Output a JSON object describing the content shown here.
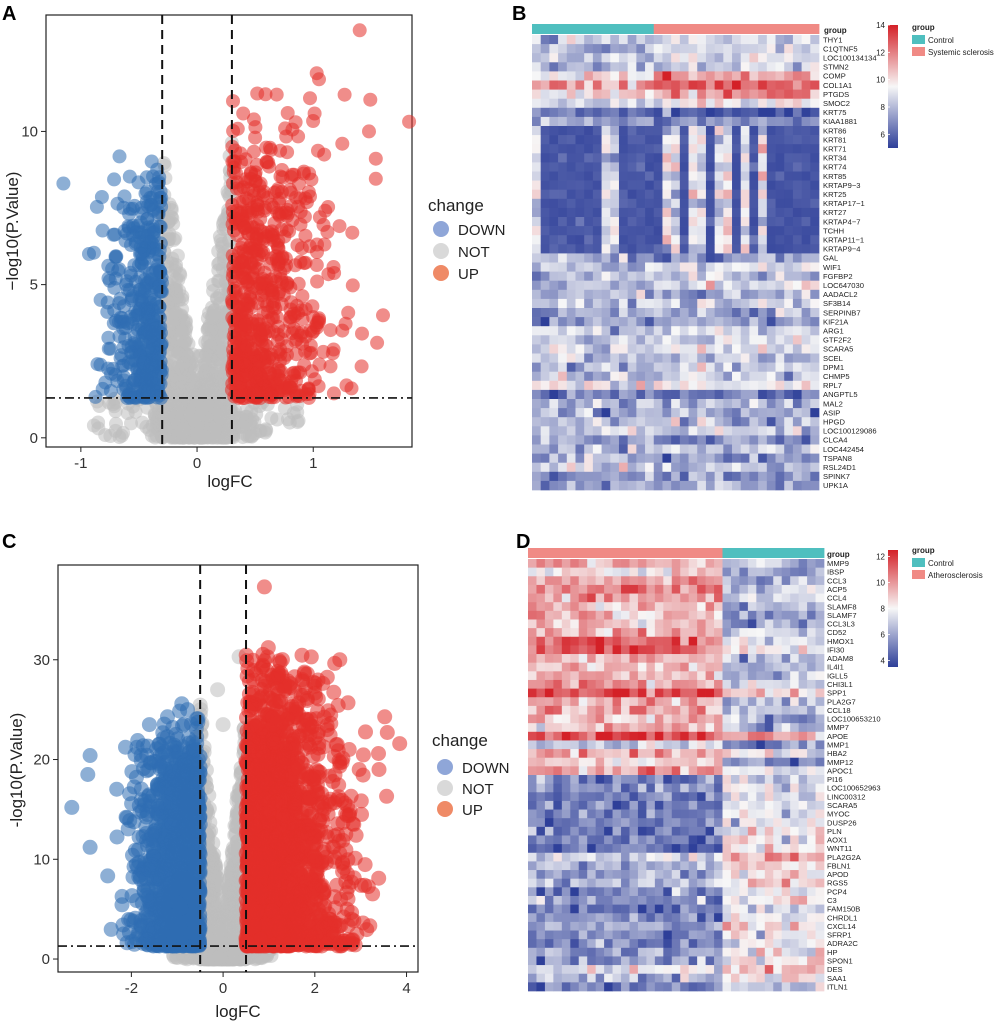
{
  "colors": {
    "down": "#2f6db3",
    "not": "#bdbdbd",
    "up": "#e3302a",
    "down_legend": "#8fa6d8",
    "not_legend": "#d9d9d9",
    "up_legend": "#ef8a66",
    "control": "#4fbfbf",
    "disease": "#f08a85",
    "heat_low": "#2e3f99",
    "heat_mid": "#f7f7f7",
    "heat_high": "#d42027"
  },
  "chart_data": [
    {
      "panel": "A",
      "type": "scatter",
      "kind": "volcano",
      "xlabel": "logFC",
      "ylabel": "−log10(P.Value)",
      "xlim": [
        -1.3,
        1.85
      ],
      "ylim": [
        -0.3,
        13.8
      ],
      "xticks": [
        -1,
        0,
        1
      ],
      "yticks": [
        0,
        5,
        10
      ],
      "fc_threshold": 0.3,
      "p_threshold": 1.3,
      "seed": 7,
      "series": [
        {
          "name": "DOWN",
          "count": 420
        },
        {
          "name": "NOT",
          "count": 1500
        },
        {
          "name": "UP",
          "count": 650
        }
      ],
      "outliers": [
        {
          "x": -1.15,
          "y": 8.3,
          "change": "DOWN"
        },
        {
          "x": -0.93,
          "y": 6.0,
          "change": "DOWN"
        },
        {
          "x": -0.83,
          "y": 4.5,
          "change": "DOWN"
        },
        {
          "x": -0.7,
          "y": 5.2,
          "change": "DOWN"
        },
        {
          "x": -0.65,
          "y": 2.7,
          "change": "DOWN"
        },
        {
          "x": -0.55,
          "y": 1.8,
          "change": "DOWN"
        },
        {
          "x": -0.4,
          "y": 7.6,
          "change": "DOWN"
        },
        {
          "x": -0.38,
          "y": 6.9,
          "change": "DOWN"
        },
        {
          "x": 0.28,
          "y": 9.2,
          "change": "NOT"
        },
        {
          "x": 1.4,
          "y": 13.3,
          "change": "UP"
        },
        {
          "x": 1.03,
          "y": 11.9,
          "change": "UP"
        },
        {
          "x": 1.27,
          "y": 11.2,
          "change": "UP"
        },
        {
          "x": 1.05,
          "y": 11.7,
          "change": "UP"
        },
        {
          "x": 1.48,
          "y": 10.0,
          "change": "UP"
        },
        {
          "x": 1.25,
          "y": 9.6,
          "change": "UP"
        },
        {
          "x": 0.78,
          "y": 10.6,
          "change": "UP"
        },
        {
          "x": 1.6,
          "y": 4.0,
          "change": "UP"
        },
        {
          "x": 1.55,
          "y": 3.1,
          "change": "UP"
        },
        {
          "x": 1.42,
          "y": 3.4,
          "change": "UP"
        },
        {
          "x": 1.25,
          "y": 3.5,
          "change": "UP"
        },
        {
          "x": 1.05,
          "y": 3.9,
          "change": "UP"
        }
      ],
      "legend_title": "change",
      "legend": [
        "DOWN",
        "NOT",
        "UP"
      ]
    },
    {
      "panel": "B",
      "type": "heatmap",
      "groups": [
        {
          "name": "Control",
          "n": 14
        },
        {
          "name": "Systemic sclerosis",
          "n": 19
        }
      ],
      "annotation_label": "group",
      "legend_title": "group",
      "scale": {
        "min": 5,
        "max": 14,
        "ticks": [
          6,
          8,
          10,
          12,
          14
        ]
      },
      "seed": 101,
      "rows": [
        {
          "gene": "THY1",
          "base": 8.6,
          "up": 0.4
        },
        {
          "gene": "C1QTNF5",
          "base": 8.6,
          "up": 0.4
        },
        {
          "gene": "LOC100134134",
          "base": 8.9,
          "up": 0.3
        },
        {
          "gene": "STMN2",
          "base": 8.4,
          "up": 0.3
        },
        {
          "gene": "COMP",
          "base": 10.8,
          "up": 0.9
        },
        {
          "gene": "COL1A1",
          "base": 12.0,
          "up": 0.7
        },
        {
          "gene": "PTGDS",
          "base": 10.8,
          "up": 0.6
        },
        {
          "gene": "SMOC2",
          "base": 9.0,
          "up": 0.3
        },
        {
          "gene": "KRT75",
          "base": 6.0,
          "up": -0.3
        },
        {
          "gene": "KIAA1881",
          "base": 7.2,
          "up": -0.3
        },
        {
          "gene": "KRT86",
          "base": 5.6,
          "up": -0.2,
          "stripe": 1
        },
        {
          "gene": "KRT81",
          "base": 5.6,
          "up": -0.2,
          "stripe": 1
        },
        {
          "gene": "KRT71",
          "base": 5.6,
          "up": -0.2,
          "stripe": 1
        },
        {
          "gene": "KRT34",
          "base": 5.6,
          "up": -0.2,
          "stripe": 1
        },
        {
          "gene": "KRT74",
          "base": 5.6,
          "up": -0.2,
          "stripe": 1
        },
        {
          "gene": "KRT85",
          "base": 5.6,
          "up": -0.2,
          "stripe": 1
        },
        {
          "gene": "KRTAP9−3",
          "base": 5.6,
          "up": -0.2,
          "stripe": 1
        },
        {
          "gene": "KRT25",
          "base": 5.6,
          "up": -0.2,
          "stripe": 1
        },
        {
          "gene": "KRTAP17−1",
          "base": 5.6,
          "up": -0.2,
          "stripe": 1
        },
        {
          "gene": "KRT27",
          "base": 5.6,
          "up": -0.2,
          "stripe": 1
        },
        {
          "gene": "KRTAP4−7",
          "base": 5.6,
          "up": -0.2,
          "stripe": 1
        },
        {
          "gene": "TCHH",
          "base": 5.6,
          "up": -0.2,
          "stripe": 1
        },
        {
          "gene": "KRTAP11−1",
          "base": 5.6,
          "up": -0.2,
          "stripe": 1
        },
        {
          "gene": "KRTAP9−4",
          "base": 5.6,
          "up": -0.2,
          "stripe": 1
        },
        {
          "gene": "GAL",
          "base": 7.4,
          "up": -0.3
        },
        {
          "gene": "WIF1",
          "base": 8.6,
          "up": 0.3
        },
        {
          "gene": "FGFBP2",
          "base": 8.0,
          "up": 0.2
        },
        {
          "gene": "LOC647030",
          "base": 8.5,
          "up": 0.2
        },
        {
          "gene": "AADACL2",
          "base": 7.8,
          "up": -0.2
        },
        {
          "gene": "SF3B14",
          "base": 8.6,
          "up": 0.2
        },
        {
          "gene": "SERPINB7",
          "base": 7.6,
          "up": 0.0
        },
        {
          "gene": "KIF21A",
          "base": 7.3,
          "up": 0.0
        },
        {
          "gene": "ARG1",
          "base": 8.6,
          "up": 0.2
        },
        {
          "gene": "GTF2F2",
          "base": 8.5,
          "up": 0.2
        },
        {
          "gene": "SCARA5",
          "base": 8.8,
          "up": 0.3
        },
        {
          "gene": "SCEL",
          "base": 8.0,
          "up": -0.2
        },
        {
          "gene": "DPM1",
          "base": 8.4,
          "up": 0.1
        },
        {
          "gene": "CHMP5",
          "base": 8.4,
          "up": 0.1
        },
        {
          "gene": "RPL7",
          "base": 9.6,
          "up": 0.2
        },
        {
          "gene": "ANGPTL5",
          "base": 6.2,
          "up": 0.0
        },
        {
          "gene": "MAL2",
          "base": 7.6,
          "up": 0.0
        },
        {
          "gene": "ASIP",
          "base": 7.8,
          "up": 0.0
        },
        {
          "gene": "HPGD",
          "base": 8.2,
          "up": -0.2
        },
        {
          "gene": "LOC100129086",
          "base": 8.5,
          "up": 0.2
        },
        {
          "gene": "CLCA4",
          "base": 7.2,
          "up": -0.2
        },
        {
          "gene": "LOC442454",
          "base": 8.2,
          "up": 0.2
        },
        {
          "gene": "TSPAN8",
          "base": 7.4,
          "up": -0.2
        },
        {
          "gene": "RSL24D1",
          "base": 8.4,
          "up": 0.1
        },
        {
          "gene": "SPINK7",
          "base": 7.2,
          "up": -0.2
        },
        {
          "gene": "UPK1A",
          "base": 7.4,
          "up": -0.2
        }
      ]
    },
    {
      "panel": "C",
      "type": "scatter",
      "kind": "volcano",
      "xlabel": "logFC",
      "ylabel": "-log10(P.Value)",
      "xlim": [
        -3.6,
        4.25
      ],
      "ylim": [
        -1.3,
        39.5
      ],
      "xticks": [
        -2,
        0,
        2,
        4
      ],
      "yticks": [
        0,
        10,
        20,
        30
      ],
      "fc_threshold": 0.5,
      "p_threshold": 1.3,
      "seed": 19,
      "series": [
        {
          "name": "DOWN",
          "count": 1300
        },
        {
          "name": "NOT",
          "count": 1400
        },
        {
          "name": "UP",
          "count": 2000
        }
      ],
      "outliers": [
        {
          "x": -3.3,
          "y": 15.2,
          "change": "DOWN"
        },
        {
          "x": -2.9,
          "y": 20.4,
          "change": "DOWN"
        },
        {
          "x": -2.95,
          "y": 18.5,
          "change": "DOWN"
        },
        {
          "x": -2.9,
          "y": 11.2,
          "change": "DOWN"
        },
        {
          "x": -1.8,
          "y": 8.0,
          "change": "DOWN"
        },
        {
          "x": -1.5,
          "y": 12.8,
          "change": "DOWN"
        },
        {
          "x": -0.9,
          "y": 25.6,
          "change": "DOWN"
        },
        {
          "x": -0.12,
          "y": 27.0,
          "change": "NOT"
        },
        {
          "x": 0.0,
          "y": 23.5,
          "change": "NOT"
        },
        {
          "x": 0.35,
          "y": 30.3,
          "change": "NOT"
        },
        {
          "x": 0.9,
          "y": 37.3,
          "change": "UP"
        },
        {
          "x": 3.85,
          "y": 21.6,
          "change": "UP"
        },
        {
          "x": 3.4,
          "y": 19.0,
          "change": "UP"
        },
        {
          "x": 2.75,
          "y": 21.0,
          "change": "UP"
        },
        {
          "x": 2.85,
          "y": 13.5,
          "change": "UP"
        },
        {
          "x": 2.9,
          "y": 12.4,
          "change": "UP"
        },
        {
          "x": 2.5,
          "y": 16.0,
          "change": "UP"
        },
        {
          "x": 2.2,
          "y": 11.0,
          "change": "UP"
        }
      ],
      "legend_title": "change",
      "legend": [
        "DOWN",
        "NOT",
        "UP"
      ]
    },
    {
      "panel": "D",
      "type": "heatmap",
      "groups": [
        {
          "name": "Atherosclerosis",
          "n": 23
        },
        {
          "name": "Control",
          "n": 12
        }
      ],
      "legend_groups": [
        "Control",
        "Atherosclerosis"
      ],
      "annotation_label": "group",
      "legend_title": "group",
      "scale": {
        "min": 3.5,
        "max": 12.5,
        "ticks": [
          4,
          6,
          8,
          10,
          12
        ]
      },
      "seed": 303,
      "rows": [
        {
          "gene": "MMP9",
          "base": 8.0,
          "up": 1.6
        },
        {
          "gene": "IBSP",
          "base": 7.0,
          "up": 1.4
        },
        {
          "gene": "CCL3",
          "base": 8.0,
          "up": 1.6
        },
        {
          "gene": "ACP5",
          "base": 8.8,
          "up": 1.8
        },
        {
          "gene": "CCL4",
          "base": 8.2,
          "up": 1.6
        },
        {
          "gene": "SLAMF8",
          "base": 7.8,
          "up": 1.6
        },
        {
          "gene": "SLAMF7",
          "base": 7.6,
          "up": 1.6
        },
        {
          "gene": "CCL3L3",
          "base": 7.6,
          "up": 1.6
        },
        {
          "gene": "CD52",
          "base": 8.0,
          "up": 1.4
        },
        {
          "gene": "HMOX1",
          "base": 9.2,
          "up": 1.6
        },
        {
          "gene": "IFI30",
          "base": 9.4,
          "up": 1.6
        },
        {
          "gene": "ADAM8",
          "base": 8.0,
          "up": 1.5
        },
        {
          "gene": "IL4I1",
          "base": 7.8,
          "up": 1.5
        },
        {
          "gene": "IGLL5",
          "base": 7.8,
          "up": 1.2
        },
        {
          "gene": "CHI3L1",
          "base": 8.4,
          "up": 1.4
        },
        {
          "gene": "SPP1",
          "base": 10.2,
          "up": 1.5
        },
        {
          "gene": "PLA2G7",
          "base": 8.0,
          "up": 1.6
        },
        {
          "gene": "CCL18",
          "base": 8.0,
          "up": 1.6
        },
        {
          "gene": "LOC100653210",
          "base": 7.8,
          "up": 1.6
        },
        {
          "gene": "MMP7",
          "base": 7.6,
          "up": 1.4
        },
        {
          "gene": "APOE",
          "base": 10.6,
          "up": 0.8
        },
        {
          "gene": "MMP1",
          "base": 6.0,
          "up": 1.0
        },
        {
          "gene": "HBA2",
          "base": 8.6,
          "up": 0.8
        },
        {
          "gene": "MMP12",
          "base": 7.0,
          "up": 1.4
        },
        {
          "gene": "APOC1",
          "base": 9.0,
          "up": 1.0
        },
        {
          "gene": "PI16",
          "base": 6.2,
          "up": -1.0
        },
        {
          "gene": "LOC100652963",
          "base": 6.6,
          "up": -1.0
        },
        {
          "gene": "LINC00312",
          "base": 6.2,
          "up": -1.2
        },
        {
          "gene": "SCARA5",
          "base": 6.6,
          "up": -1.4
        },
        {
          "gene": "MYOC",
          "base": 6.4,
          "up": -1.4
        },
        {
          "gene": "DUSP26",
          "base": 6.2,
          "up": -1.4
        },
        {
          "gene": "PLN",
          "base": 6.4,
          "up": -1.4
        },
        {
          "gene": "AOX1",
          "base": 6.6,
          "up": -1.4
        },
        {
          "gene": "WNT11",
          "base": 6.0,
          "up": -1.6
        },
        {
          "gene": "PLA2G2A",
          "base": 8.4,
          "up": -1.4
        },
        {
          "gene": "FBLN1",
          "base": 7.6,
          "up": -1.2
        },
        {
          "gene": "APOD",
          "base": 7.2,
          "up": -1.4
        },
        {
          "gene": "RGS5",
          "base": 7.6,
          "up": -1.2
        },
        {
          "gene": "PCP4",
          "base": 6.2,
          "up": -1.2
        },
        {
          "gene": "C3",
          "base": 7.0,
          "up": -1.2
        },
        {
          "gene": "FAM150B",
          "base": 6.0,
          "up": -1.2
        },
        {
          "gene": "CHRDL1",
          "base": 6.6,
          "up": -1.2
        },
        {
          "gene": "CXCL14",
          "base": 7.4,
          "up": -1.2
        },
        {
          "gene": "SFRP1",
          "base": 6.8,
          "up": -1.2
        },
        {
          "gene": "ADRA2C",
          "base": 6.4,
          "up": -1.2
        },
        {
          "gene": "HP",
          "base": 6.8,
          "up": -1.0
        },
        {
          "gene": "SPON1",
          "base": 6.8,
          "up": -1.2
        },
        {
          "gene": "DES",
          "base": 8.6,
          "up": -1.0
        },
        {
          "gene": "SAA1",
          "base": 7.0,
          "up": -1.0
        },
        {
          "gene": "ITLN1",
          "base": 6.0,
          "up": -1.2
        }
      ]
    }
  ]
}
